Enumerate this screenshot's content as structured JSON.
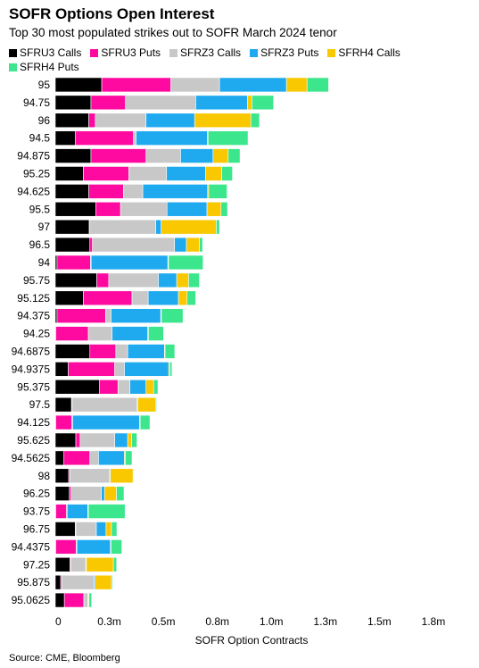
{
  "header": {
    "title": "SOFR Options Open Interest",
    "subtitle": "Top 30 most populated strikes out to SOFR March 2024 tenor"
  },
  "footer": {
    "source": "Source: CME, Bloomberg"
  },
  "chart_data": {
    "type": "bar",
    "orientation": "horizontal",
    "stacked": true,
    "title": "SOFR Options Open Interest",
    "subtitle": "Top 30 most populated strikes out to SOFR March 2024 tenor",
    "xlabel": "SOFR Option Contracts",
    "ylabel": "",
    "xlim": [
      0,
      1800000
    ],
    "xticks": [
      0,
      250000,
      500000,
      750000,
      1000000,
      1250000,
      1500000,
      1750000
    ],
    "xtick_labels": [
      "0",
      "0.3m",
      "0.5m",
      "0.8m",
      "1.0m",
      "1.3m",
      "1.5m",
      "1.8m"
    ],
    "grid": false,
    "legend_position": "top",
    "categories": [
      "95",
      "94.75",
      "96",
      "94.5",
      "94.875",
      "95.25",
      "94.625",
      "95.5",
      "97",
      "96.5",
      "94",
      "95.75",
      "95.125",
      "94.375",
      "94.25",
      "94.6875",
      "94.9375",
      "95.375",
      "97.5",
      "94.125",
      "95.625",
      "94.5625",
      "98",
      "96.25",
      "93.75",
      "96.75",
      "94.4375",
      "97.25",
      "95.875",
      "95.0625"
    ],
    "series": [
      {
        "name": "SFRU3 Calls",
        "color": "#000000",
        "values": [
          215000,
          165000,
          155000,
          92000,
          165000,
          130000,
          155000,
          187000,
          157000,
          160000,
          8000,
          192000,
          130000,
          8000,
          3000,
          160000,
          60000,
          205000,
          75000,
          2000,
          95000,
          40000,
          62000,
          65000,
          2000,
          92000,
          2000,
          68000,
          25000,
          42000
        ]
      },
      {
        "name": "SFRU3 Puts",
        "color": "#ff0aa0",
        "values": [
          320000,
          160000,
          30000,
          270000,
          255000,
          210000,
          160000,
          115000,
          3000,
          12000,
          155000,
          55000,
          225000,
          225000,
          150000,
          120000,
          215000,
          85000,
          3000,
          75000,
          20000,
          120000,
          5000,
          8000,
          50000,
          3000,
          95000,
          3000,
          5000,
          90000
        ]
      },
      {
        "name": "SFRZ3 Calls",
        "color": "#c8c8c8",
        "values": [
          225000,
          325000,
          235000,
          12000,
          160000,
          175000,
          90000,
          215000,
          305000,
          380000,
          3000,
          230000,
          75000,
          25000,
          110000,
          55000,
          45000,
          55000,
          300000,
          3000,
          160000,
          40000,
          185000,
          140000,
          3000,
          95000,
          3000,
          70000,
          150000,
          18000
        ]
      },
      {
        "name": "SFRZ3 Puts",
        "color": "#1faaf0",
        "values": [
          310000,
          240000,
          225000,
          330000,
          150000,
          180000,
          300000,
          185000,
          25000,
          55000,
          355000,
          85000,
          140000,
          230000,
          165000,
          170000,
          205000,
          75000,
          3000,
          310000,
          60000,
          120000,
          3000,
          15000,
          95000,
          45000,
          155000,
          3000,
          5000,
          3000
        ]
      },
      {
        "name": "SFRH4 Calls",
        "color": "#fac800",
        "values": [
          95000,
          20000,
          260000,
          3000,
          70000,
          75000,
          5000,
          65000,
          255000,
          60000,
          3000,
          55000,
          40000,
          3000,
          3000,
          3000,
          5000,
          35000,
          85000,
          3000,
          18000,
          5000,
          105000,
          55000,
          3000,
          25000,
          3000,
          125000,
          75000,
          3000
        ]
      },
      {
        "name": "SFRH4 Puts",
        "color": "#3ce68c",
        "values": [
          100000,
          100000,
          40000,
          185000,
          55000,
          50000,
          85000,
          30000,
          15000,
          15000,
          160000,
          50000,
          40000,
          100000,
          70000,
          45000,
          10000,
          20000,
          3000,
          45000,
          25000,
          30000,
          3000,
          35000,
          170000,
          25000,
          50000,
          15000,
          5000,
          12000
        ]
      }
    ]
  }
}
